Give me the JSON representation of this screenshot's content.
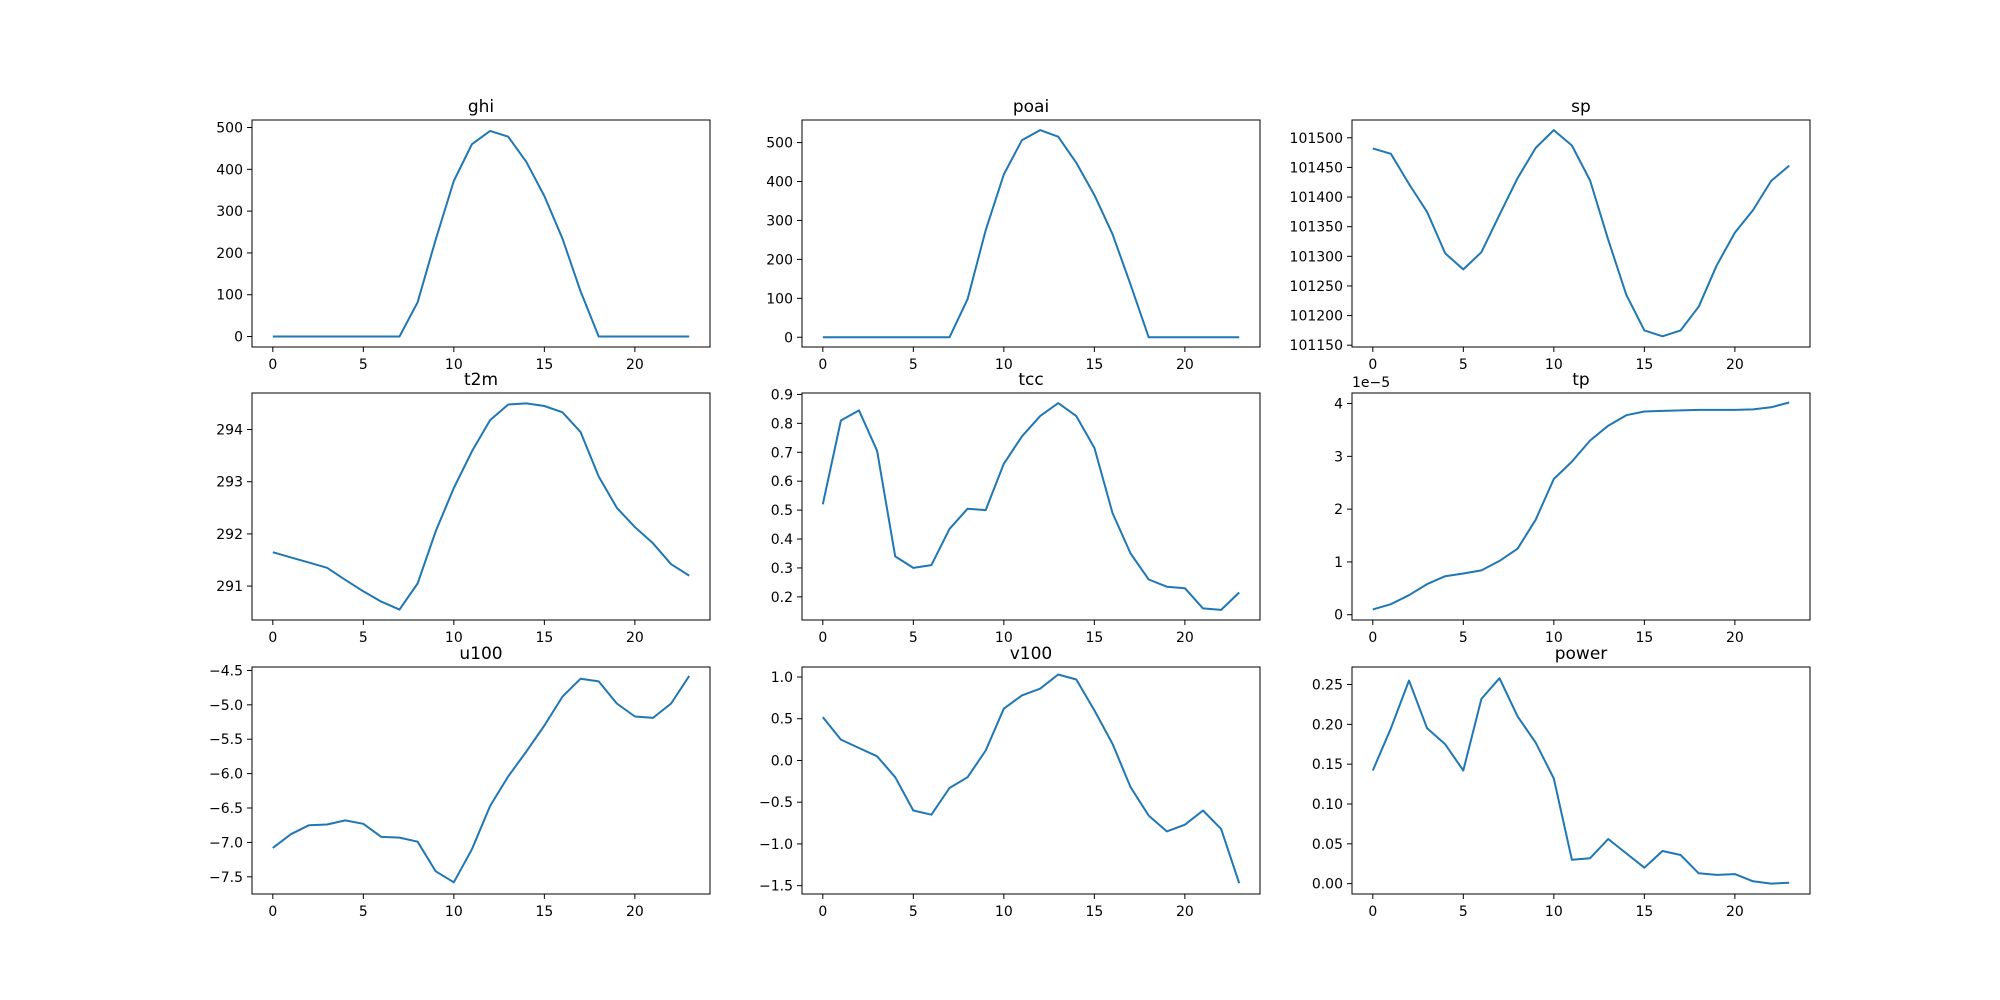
{
  "figure": {
    "background": "#ffffff",
    "line_color": "#1f77b4"
  },
  "chart_data": [
    {
      "type": "line",
      "title": "ghi",
      "x": [
        0,
        1,
        2,
        3,
        4,
        5,
        6,
        7,
        8,
        9,
        10,
        11,
        12,
        13,
        14,
        15,
        16,
        17,
        18,
        19,
        20,
        21,
        22,
        23
      ],
      "series": [
        {
          "values": [
            0,
            0,
            0,
            0,
            0,
            0,
            0,
            0,
            82,
            232,
            372,
            460,
            492,
            478,
            418,
            336,
            234,
            108,
            0,
            0,
            0,
            0,
            0,
            0
          ]
        }
      ],
      "xlim": [
        -1.15,
        24.15
      ],
      "ylim": [
        -25,
        518
      ],
      "xticks": [
        0,
        5,
        10,
        15,
        20
      ],
      "yticks": [
        0,
        100,
        200,
        300,
        400,
        500
      ],
      "xtick_labels": [
        "0",
        "5",
        "10",
        "15",
        "20"
      ],
      "ytick_labels": [
        "0",
        "100",
        "200",
        "300",
        "400",
        "500"
      ]
    },
    {
      "type": "line",
      "title": "poai",
      "x": [
        0,
        1,
        2,
        3,
        4,
        5,
        6,
        7,
        8,
        9,
        10,
        11,
        12,
        13,
        14,
        15,
        16,
        17,
        18,
        19,
        20,
        21,
        22,
        23
      ],
      "series": [
        {
          "values": [
            0,
            0,
            0,
            0,
            0,
            0,
            0,
            0,
            98,
            275,
            418,
            506,
            532,
            515,
            448,
            365,
            265,
            135,
            0,
            0,
            0,
            0,
            0,
            0
          ]
        }
      ],
      "xlim": [
        -1.15,
        24.15
      ],
      "ylim": [
        -25,
        558
      ],
      "xticks": [
        0,
        5,
        10,
        15,
        20
      ],
      "yticks": [
        0,
        100,
        200,
        300,
        400,
        500
      ],
      "xtick_labels": [
        "0",
        "5",
        "10",
        "15",
        "20"
      ],
      "ytick_labels": [
        "0",
        "100",
        "200",
        "300",
        "400",
        "500"
      ]
    },
    {
      "type": "line",
      "title": "sp",
      "x": [
        0,
        1,
        2,
        3,
        4,
        5,
        6,
        7,
        8,
        9,
        10,
        11,
        12,
        13,
        14,
        15,
        16,
        17,
        18,
        19,
        20,
        21,
        22,
        23
      ],
      "series": [
        {
          "values": [
            101482,
            101473,
            101422,
            101375,
            101305,
            101278,
            101307,
            101370,
            101432,
            101483,
            101513,
            101487,
            101428,
            101328,
            101235,
            101175,
            101165,
            101175,
            101215,
            101285,
            101340,
            101378,
            101427,
            101453
          ]
        }
      ],
      "xlim": [
        -1.15,
        24.15
      ],
      "ylim": [
        101147,
        101530
      ],
      "xticks": [
        0,
        5,
        10,
        15,
        20
      ],
      "yticks": [
        101150,
        101200,
        101250,
        101300,
        101350,
        101400,
        101450,
        101500
      ],
      "xtick_labels": [
        "0",
        "5",
        "10",
        "15",
        "20"
      ],
      "ytick_labels": [
        "101150",
        "101200",
        "101250",
        "101300",
        "101350",
        "101400",
        "101450",
        "101500"
      ]
    },
    {
      "type": "line",
      "title": "t2m",
      "x": [
        0,
        1,
        2,
        3,
        4,
        5,
        6,
        7,
        8,
        9,
        10,
        11,
        12,
        13,
        14,
        15,
        16,
        17,
        18,
        19,
        20,
        21,
        22,
        23
      ],
      "series": [
        {
          "values": [
            291.65,
            291.55,
            291.45,
            291.35,
            291.12,
            290.9,
            290.7,
            290.55,
            291.05,
            292.05,
            292.88,
            293.58,
            294.18,
            294.48,
            294.5,
            294.45,
            294.33,
            293.95,
            293.1,
            292.5,
            292.13,
            291.82,
            291.42,
            291.2
          ]
        }
      ],
      "xlim": [
        -1.15,
        24.15
      ],
      "ylim": [
        290.35,
        294.7
      ],
      "xticks": [
        0,
        5,
        10,
        15,
        20
      ],
      "yticks": [
        291,
        292,
        293,
        294
      ],
      "xtick_labels": [
        "0",
        "5",
        "10",
        "15",
        "20"
      ],
      "ytick_labels": [
        "291",
        "292",
        "293",
        "294"
      ]
    },
    {
      "type": "line",
      "title": "tcc",
      "x": [
        0,
        1,
        2,
        3,
        4,
        5,
        6,
        7,
        8,
        9,
        10,
        11,
        12,
        13,
        14,
        15,
        16,
        17,
        18,
        19,
        20,
        21,
        22,
        23
      ],
      "series": [
        {
          "values": [
            0.52,
            0.81,
            0.845,
            0.705,
            0.34,
            0.3,
            0.31,
            0.435,
            0.505,
            0.5,
            0.66,
            0.755,
            0.825,
            0.87,
            0.825,
            0.715,
            0.49,
            0.35,
            0.26,
            0.235,
            0.23,
            0.16,
            0.155,
            0.215
          ]
        }
      ],
      "xlim": [
        -1.15,
        24.15
      ],
      "ylim": [
        0.12,
        0.905
      ],
      "xticks": [
        0,
        5,
        10,
        15,
        20
      ],
      "yticks": [
        0.2,
        0.3,
        0.4,
        0.5,
        0.6,
        0.7,
        0.8,
        0.9
      ],
      "xtick_labels": [
        "0",
        "5",
        "10",
        "15",
        "20"
      ],
      "ytick_labels": [
        "0.2",
        "0.3",
        "0.4",
        "0.5",
        "0.6",
        "0.7",
        "0.8",
        "0.9"
      ]
    },
    {
      "type": "line",
      "title": "tp",
      "x": [
        0,
        1,
        2,
        3,
        4,
        5,
        6,
        7,
        8,
        9,
        10,
        11,
        12,
        13,
        14,
        15,
        16,
        17,
        18,
        19,
        20,
        21,
        22,
        23
      ],
      "series": [
        {
          "values": [
            0.1,
            0.2,
            0.37,
            0.58,
            0.73,
            0.78,
            0.84,
            1.02,
            1.25,
            1.8,
            2.57,
            2.9,
            3.3,
            3.58,
            3.78,
            3.85,
            3.86,
            3.87,
            3.88,
            3.88,
            3.88,
            3.89,
            3.93,
            4.02
          ]
        }
      ],
      "xlim": [
        -1.15,
        24.15
      ],
      "ylim": [
        -0.1,
        4.2
      ],
      "xticks": [
        0,
        5,
        10,
        15,
        20
      ],
      "yticks": [
        0,
        1,
        2,
        3,
        4
      ],
      "xtick_labels": [
        "0",
        "5",
        "10",
        "15",
        "20"
      ],
      "ytick_labels": [
        "0",
        "1",
        "2",
        "3",
        "4"
      ],
      "offset_label": "1e−5"
    },
    {
      "type": "line",
      "title": "u100",
      "x": [
        0,
        1,
        2,
        3,
        4,
        5,
        6,
        7,
        8,
        9,
        10,
        11,
        12,
        13,
        14,
        15,
        16,
        17,
        18,
        19,
        20,
        21,
        22,
        23
      ],
      "series": [
        {
          "values": [
            -7.08,
            -6.88,
            -6.75,
            -6.74,
            -6.68,
            -6.73,
            -6.92,
            -6.93,
            -6.99,
            -7.42,
            -7.58,
            -7.1,
            -6.47,
            -6.04,
            -5.68,
            -5.3,
            -4.88,
            -4.62,
            -4.66,
            -4.98,
            -5.17,
            -5.19,
            -4.98,
            -4.58
          ]
        }
      ],
      "xlim": [
        -1.15,
        24.15
      ],
      "ylim": [
        -7.75,
        -4.45
      ],
      "xticks": [
        0,
        5,
        10,
        15,
        20
      ],
      "yticks": [
        -7.5,
        -7.0,
        -6.5,
        -6.0,
        -5.5,
        -5.0,
        -4.5
      ],
      "xtick_labels": [
        "0",
        "5",
        "10",
        "15",
        "20"
      ],
      "ytick_labels": [
        "−7.5",
        "−7.0",
        "−6.5",
        "−6.0",
        "−5.5",
        "−5.0",
        "−4.5"
      ]
    },
    {
      "type": "line",
      "title": "v100",
      "x": [
        0,
        1,
        2,
        3,
        4,
        5,
        6,
        7,
        8,
        9,
        10,
        11,
        12,
        13,
        14,
        15,
        16,
        17,
        18,
        19,
        20,
        21,
        22,
        23
      ],
      "series": [
        {
          "values": [
            0.52,
            0.25,
            0.15,
            0.05,
            -0.2,
            -0.6,
            -0.65,
            -0.33,
            -0.2,
            0.12,
            0.62,
            0.78,
            0.86,
            1.03,
            0.97,
            0.6,
            0.2,
            -0.32,
            -0.66,
            -0.85,
            -0.77,
            -0.6,
            -0.82,
            -1.47
          ]
        }
      ],
      "xlim": [
        -1.15,
        24.15
      ],
      "ylim": [
        -1.6,
        1.12
      ],
      "xticks": [
        0,
        5,
        10,
        15,
        20
      ],
      "yticks": [
        -1.5,
        -1.0,
        -0.5,
        0.0,
        0.5,
        1.0
      ],
      "xtick_labels": [
        "0",
        "5",
        "10",
        "15",
        "20"
      ],
      "ytick_labels": [
        "−1.5",
        "−1.0",
        "−0.5",
        "0.0",
        "0.5",
        "1.0"
      ]
    },
    {
      "type": "line",
      "title": "power",
      "x": [
        0,
        1,
        2,
        3,
        4,
        5,
        6,
        7,
        8,
        9,
        10,
        11,
        12,
        13,
        14,
        15,
        16,
        17,
        18,
        19,
        20,
        21,
        22,
        23
      ],
      "series": [
        {
          "values": [
            0.142,
            0.195,
            0.255,
            0.195,
            0.175,
            0.142,
            0.232,
            0.258,
            0.21,
            0.177,
            0.132,
            0.03,
            0.032,
            0.056,
            0.038,
            0.02,
            0.041,
            0.036,
            0.013,
            0.011,
            0.012,
            0.003,
            0.0,
            0.001
          ]
        }
      ],
      "xlim": [
        -1.15,
        24.15
      ],
      "ylim": [
        -0.013,
        0.272
      ],
      "xticks": [
        0,
        5,
        10,
        15,
        20
      ],
      "yticks": [
        0.0,
        0.05,
        0.1,
        0.15,
        0.2,
        0.25
      ],
      "xtick_labels": [
        "0",
        "5",
        "10",
        "15",
        "20"
      ],
      "ytick_labels": [
        "0.00",
        "0.05",
        "0.10",
        "0.15",
        "0.20",
        "0.25"
      ]
    }
  ]
}
